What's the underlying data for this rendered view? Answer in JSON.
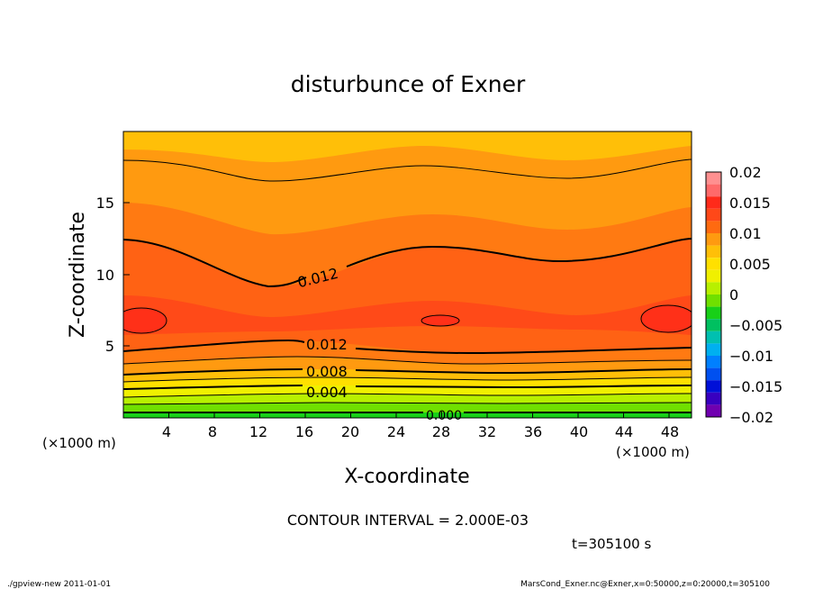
{
  "chart_data": {
    "type": "heatmap",
    "title": "disturbunce of Exner",
    "xlabel": "X-coordinate",
    "ylabel": "Z-coordinate",
    "x_unit": "(×1000 m)",
    "z_unit": "(×1000 m)",
    "x_unit_right": "(×1000 m)",
    "xlim": [
      0,
      50
    ],
    "ylim": [
      0,
      20
    ],
    "x_ticks": [
      "4",
      "8",
      "12",
      "16",
      "20",
      "24",
      "28",
      "32",
      "36",
      "40",
      "44",
      "48"
    ],
    "y_ticks": [
      "5",
      "10",
      "15"
    ],
    "contour_interval_text": "CONTOUR INTERVAL = 2.000E-03",
    "time_text": "t=305100 s",
    "contour_labels": [
      {
        "text": "0.012",
        "x": 17,
        "z": 10.1
      },
      {
        "text": "0.012",
        "x": 18.5,
        "z": 5.1
      },
      {
        "text": "0.008",
        "x": 18,
        "z": 3.2
      },
      {
        "text": "0.004",
        "x": 18,
        "z": 1.7
      },
      {
        "text": "0.000",
        "x": 28,
        "z": 0.2
      }
    ],
    "colorbar": {
      "ticks": [
        "0.02",
        "0.015",
        "0.01",
        "0.005",
        "0",
        "−0.005",
        "−0.01",
        "−0.015",
        "−0.02"
      ],
      "colors": [
        "#ff9090",
        "#ff6a6a",
        "#ff2a1a",
        "#ff4818",
        "#ff6a10",
        "#ff9a10",
        "#ffbf08",
        "#ffe000",
        "#f0f000",
        "#b8f000",
        "#70e000",
        "#18d018",
        "#00c060",
        "#00c0b0",
        "#00b0f0",
        "#0080ff",
        "#0050f0",
        "#0010d8",
        "#3800c0",
        "#7000b0"
      ]
    }
  },
  "footer": {
    "left": "./gpview-new   2011-01-01",
    "right": "MarsCond_Exner.nc@Exner,x=0:50000,z=0:20000,t=305100"
  }
}
